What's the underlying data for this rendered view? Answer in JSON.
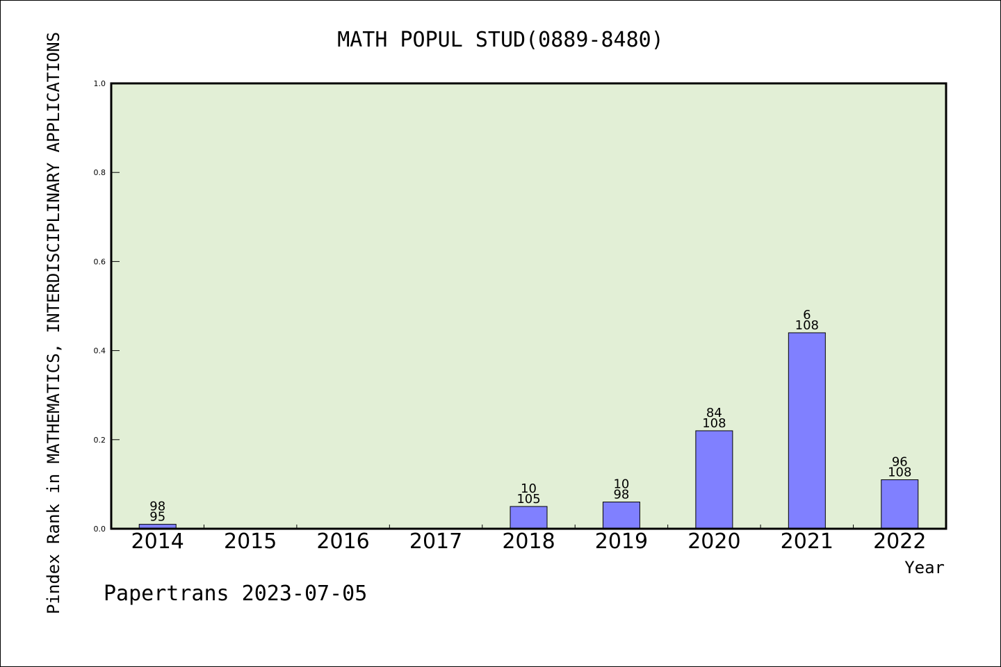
{
  "chart_data": {
    "type": "bar",
    "title": "MATH POPUL STUD(0889-8480)",
    "xlabel": "Year",
    "ylabel": "Pindex Rank in MATHEMATICS, INTERDISCIPLINARY APPLICATIONS",
    "footer": "Papertrans 2023-07-05",
    "categories": [
      "2014",
      "2015",
      "2016",
      "2017",
      "2018",
      "2019",
      "2020",
      "2021",
      "2022"
    ],
    "values": [
      0.01,
      0,
      0,
      0,
      0.05,
      0.06,
      0.22,
      0.44,
      0.11
    ],
    "labels_top": [
      "98",
      "",
      "",
      "",
      "10",
      "10",
      "84",
      "6",
      "96"
    ],
    "labels_bottom": [
      "95",
      "",
      "",
      "",
      "105",
      "98",
      "108",
      "108",
      "108"
    ],
    "ylim": [
      0,
      1.0
    ],
    "yticks": [
      "0.0",
      "0.2",
      "0.4",
      "0.6",
      "0.8",
      "1.0"
    ],
    "grid": false,
    "colors": {
      "plot_background": "#e2efd6",
      "bar_fill": "#8080ff",
      "bar_stroke": "#000000"
    }
  }
}
